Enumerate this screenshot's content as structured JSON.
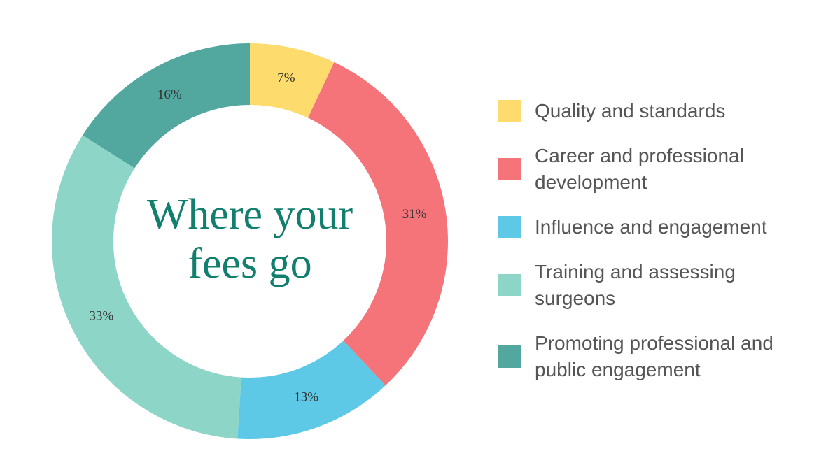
{
  "chart_data": {
    "type": "donut",
    "title": "Where your fees go",
    "categories": [
      "Quality and standards",
      "Career and professional development",
      "Influence and engagement",
      "Training and assessing surgeons",
      "Promoting professional and public engagement"
    ],
    "values": [
      7,
      31,
      13,
      33,
      16
    ],
    "value_labels": [
      "7%",
      "31%",
      "13%",
      "33%",
      "16%"
    ],
    "colors": [
      "#fddb6d",
      "#f47479",
      "#5ec9e6",
      "#8dd6c7",
      "#52a89f"
    ],
    "legend": "right"
  }
}
